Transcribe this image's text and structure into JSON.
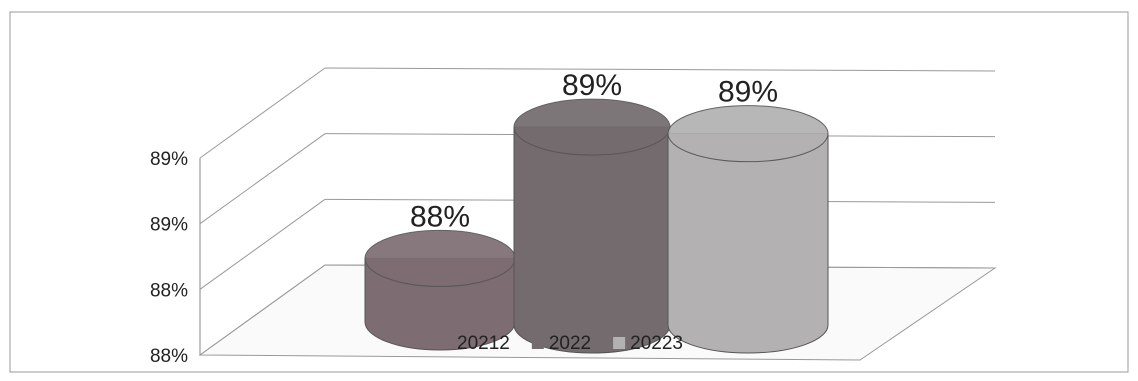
{
  "chart_data": {
    "type": "bar3d",
    "series": [
      {
        "name": "20212",
        "color": "#7d6d73",
        "values": [
          88.03
        ],
        "value_labels": [
          "88%"
        ]
      },
      {
        "name": "2022",
        "color": "#736b6d",
        "values": [
          88.63
        ],
        "value_labels": [
          "89%"
        ]
      },
      {
        "name": "20223",
        "color": "#b3b1b2",
        "values": [
          88.6
        ],
        "value_labels": [
          "89%"
        ]
      }
    ],
    "ylim": [
      88.0,
      88.9
    ],
    "yticks": [
      {
        "value": 88.0,
        "label": "88%"
      },
      {
        "value": 88.3,
        "label": "88%"
      },
      {
        "value": 88.6,
        "label": "89%"
      },
      {
        "value": 88.9,
        "label": "89%"
      }
    ],
    "grid": true
  }
}
